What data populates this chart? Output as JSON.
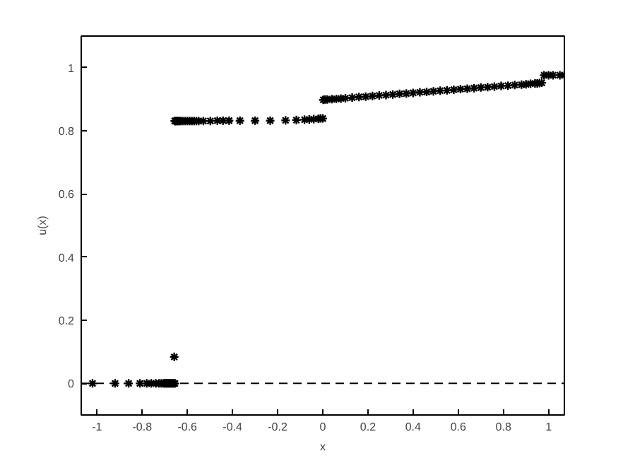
{
  "chart_data": {
    "type": "scatter",
    "xlabel": "x",
    "ylabel": "u(x)",
    "xlim": [
      -1.07,
      1.07
    ],
    "ylim": [
      -0.1,
      1.1
    ],
    "xticks": [
      -1,
      -0.8,
      -0.6,
      -0.4,
      -0.2,
      0,
      0.2,
      0.4,
      0.6,
      0.8,
      1
    ],
    "yticks": [
      0,
      0.2,
      0.4,
      0.6,
      0.8,
      1
    ],
    "marker": "cross",
    "grid": false,
    "ref_lines": [
      {
        "axis": "y",
        "value": 0,
        "color": "#000000",
        "line_style": "dashed"
      }
    ],
    "series": [
      {
        "color": "#000000",
        "x": [
          -1.02,
          -0.92,
          -0.86,
          -0.81,
          -0.78,
          -0.76,
          -0.74,
          -0.725,
          -0.715,
          -0.705,
          -0.7,
          -0.695,
          -0.69,
          -0.685,
          -0.68,
          -0.675,
          -0.67,
          -0.665,
          -0.66,
          -0.655,
          -0.658,
          -0.656,
          -0.653,
          -0.65,
          -0.645,
          -0.64,
          -0.635,
          -0.63,
          -0.62,
          -0.61,
          -0.6,
          -0.59,
          -0.58,
          -0.57,
          -0.56,
          -0.55,
          -0.529,
          -0.498,
          -0.467,
          -0.442,
          -0.415,
          -0.367,
          -0.3,
          -0.233,
          -0.165,
          -0.117,
          -0.081,
          -0.06,
          -0.04,
          -0.019,
          -0.01,
          0.0,
          0.002,
          0.01,
          0.02,
          0.04,
          0.06,
          0.08,
          0.1,
          0.13,
          0.16,
          0.19,
          0.22,
          0.25,
          0.28,
          0.31,
          0.34,
          0.37,
          0.4,
          0.43,
          0.46,
          0.49,
          0.52,
          0.55,
          0.58,
          0.61,
          0.64,
          0.67,
          0.7,
          0.73,
          0.76,
          0.79,
          0.82,
          0.85,
          0.88,
          0.9,
          0.92,
          0.94,
          0.95,
          0.96,
          0.97,
          0.98,
          1.0,
          1.02,
          1.05,
          1.07
        ],
        "values": [
          0,
          0,
          0,
          0,
          0,
          0,
          0,
          0,
          0,
          0,
          0,
          0,
          0,
          0,
          0,
          0,
          0,
          0,
          0,
          0,
          0.084,
          0.831,
          0.831,
          0.831,
          0.831,
          0.831,
          0.831,
          0.831,
          0.831,
          0.831,
          0.831,
          0.831,
          0.831,
          0.831,
          0.831,
          0.831,
          0.831,
          0.831,
          0.832,
          0.832,
          0.832,
          0.832,
          0.832,
          0.832,
          0.833,
          0.834,
          0.835,
          0.836,
          0.837,
          0.838,
          0.839,
          0.839,
          0.898,
          0.899,
          0.899,
          0.9,
          0.901,
          0.902,
          0.903,
          0.905,
          0.907,
          0.908,
          0.91,
          0.912,
          0.913,
          0.915,
          0.917,
          0.918,
          0.92,
          0.922,
          0.923,
          0.925,
          0.927,
          0.928,
          0.93,
          0.932,
          0.933,
          0.935,
          0.937,
          0.938,
          0.94,
          0.942,
          0.943,
          0.945,
          0.946,
          0.947,
          0.949,
          0.95,
          0.95,
          0.951,
          0.952,
          0.976,
          0.976,
          0.976,
          0.976,
          0.976
        ]
      }
    ]
  }
}
